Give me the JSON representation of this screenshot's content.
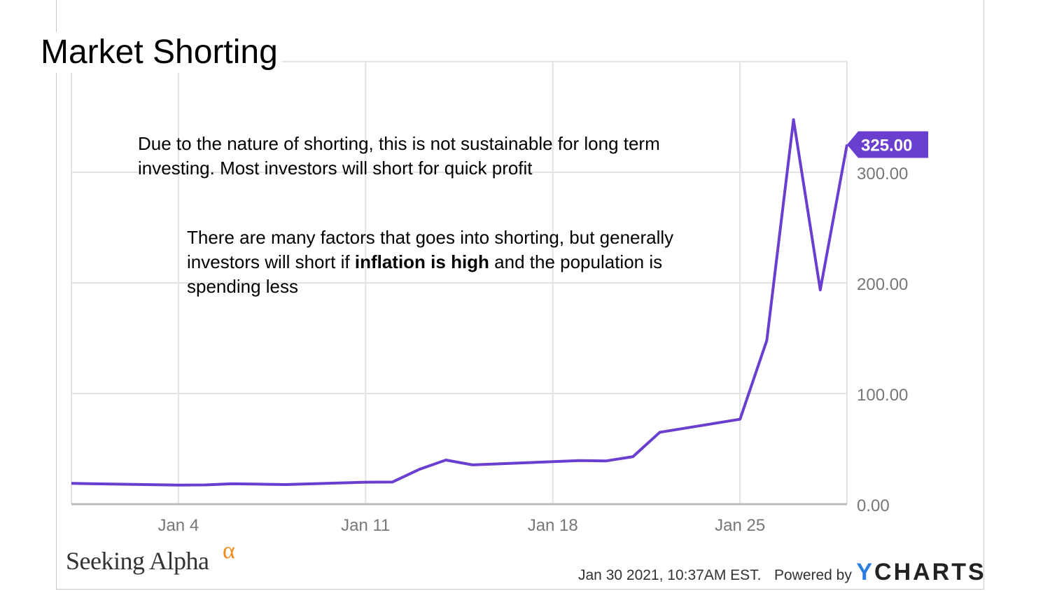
{
  "slide": {
    "title": "Market Shorting",
    "note_1": "Due to the nature of shorting, this is not sustainable for long term investing. Most investors will short for quick profit",
    "note_2_before": "There are many factors that goes into shorting, but generally investors will short if ",
    "note_2_bold": "inflation is high",
    "note_2_after": " and the population is spending less"
  },
  "footer": {
    "brand_left": "Seeking Alpha",
    "brand_left_symbol": "α",
    "timestamp": "Jan 30 2021, 10:37AM EST.",
    "powered_by": "Powered by",
    "ycharts_y": "Y",
    "ycharts_rest": "CHARTS"
  },
  "colors": {
    "line": "#6a3fd0",
    "grid": "#e3e3e3",
    "axis": "#bdbdbd",
    "label": "#777777",
    "badge_text": "#ffffff",
    "brand_alpha": "#f08a1c",
    "ycharts_y": "#2a7de1"
  },
  "chart_data": {
    "type": "line",
    "x_dates": [
      "2020-12-31",
      "2021-01-04",
      "2021-01-05",
      "2021-01-06",
      "2021-01-07",
      "2021-01-08",
      "2021-01-11",
      "2021-01-12",
      "2021-01-13",
      "2021-01-14",
      "2021-01-15",
      "2021-01-19",
      "2021-01-20",
      "2021-01-21",
      "2021-01-22",
      "2021-01-25",
      "2021-01-26",
      "2021-01-27",
      "2021-01-28",
      "2021-01-29"
    ],
    "series": [
      {
        "values": [
          18.8,
          17.3,
          17.4,
          18.4,
          18.1,
          17.7,
          19.9,
          20.0,
          31.4,
          39.9,
          35.5,
          39.4,
          39.1,
          43.0,
          65.0,
          76.8,
          147.98,
          347.51,
          193.6,
          325.0
        ]
      }
    ],
    "x_ticks": [
      {
        "date": "2021-01-04",
        "label": "Jan 4"
      },
      {
        "date": "2021-01-11",
        "label": "Jan 11"
      },
      {
        "date": "2021-01-18",
        "label": "Jan 18"
      },
      {
        "date": "2021-01-25",
        "label": "Jan 25"
      }
    ],
    "y_ticks": [
      "0.00",
      "100.00",
      "200.00",
      "300.00"
    ],
    "y_tick_values": [
      0,
      100,
      200,
      300
    ],
    "ylim": [
      0,
      400
    ],
    "x_range": [
      "2020-12-31",
      "2021-01-29"
    ],
    "last_value_label": "325.00",
    "grid": true,
    "y_axis_side": "right"
  }
}
